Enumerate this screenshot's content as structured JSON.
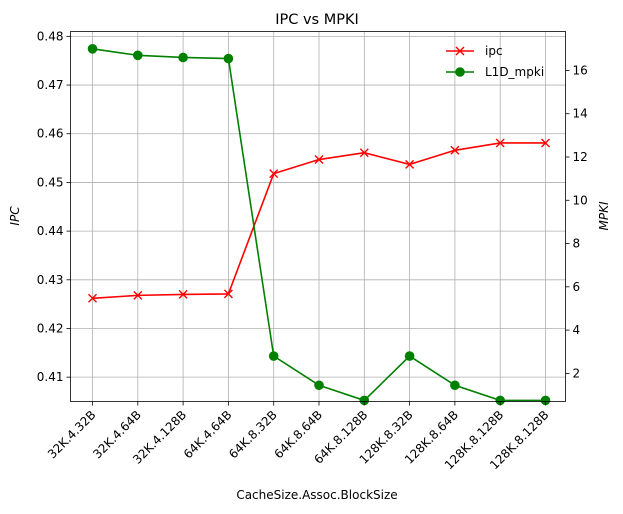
{
  "chart_data": {
    "type": "line",
    "title": "IPC vs MPKI",
    "xlabel": "CacheSize.Assoc.BlockSize",
    "ylabel_left": "IPC",
    "ylabel_right": "MPKI",
    "categories": [
      "32K.4.32B",
      "32K.4.64B",
      "32K.4.128B",
      "64K.4.64B",
      "64K.8.32B",
      "64K.8.64B",
      "64K.8.128B",
      "128K.8.32B",
      "128K.8.64B",
      "128K.8.128B",
      "128K.8.128B"
    ],
    "y_left": {
      "range": [
        0.405,
        0.481
      ],
      "ticks": [
        0.41,
        0.42,
        0.43,
        0.44,
        0.45,
        0.46,
        0.47,
        0.48
      ],
      "tick_labels": [
        "0.41",
        "0.42",
        "0.43",
        "0.44",
        "0.45",
        "0.46",
        "0.47",
        "0.48"
      ]
    },
    "y_right": {
      "range": [
        0.7,
        17.8
      ],
      "ticks": [
        2,
        4,
        6,
        8,
        10,
        12,
        14,
        16
      ],
      "tick_labels": [
        "2",
        "4",
        "6",
        "8",
        "10",
        "12",
        "14",
        "16"
      ]
    },
    "grid": true,
    "legend_position": "top-right",
    "series": [
      {
        "name": "ipc",
        "axis": "left",
        "color": "#ff0000",
        "marker": "x",
        "values": [
          0.4262,
          0.4268,
          0.427,
          0.4271,
          0.4518,
          0.4547,
          0.4561,
          0.4537,
          0.4566,
          0.4581,
          0.4581
        ]
      },
      {
        "name": "L1D_mpki",
        "axis": "right",
        "color": "#008000",
        "marker": "o",
        "values": [
          17.0,
          16.7,
          16.6,
          16.55,
          2.8,
          1.45,
          0.75,
          2.8,
          1.45,
          0.75,
          0.75
        ]
      }
    ]
  }
}
